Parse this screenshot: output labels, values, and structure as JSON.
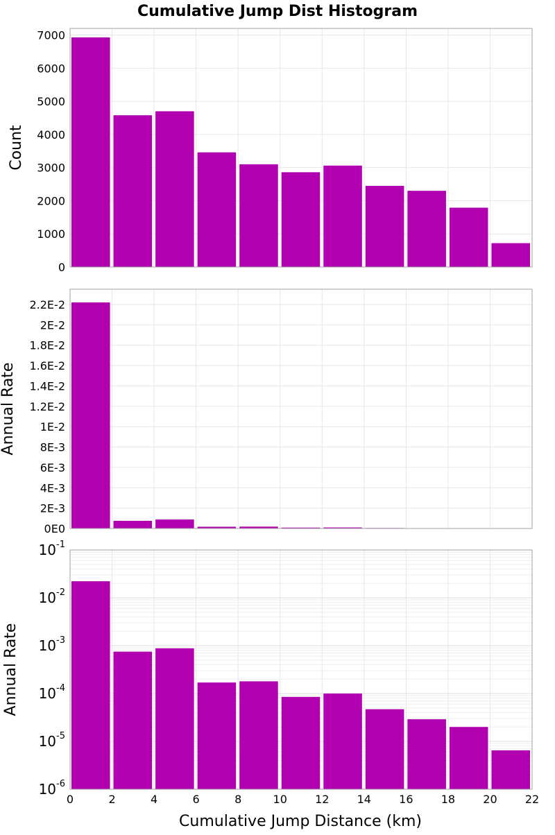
{
  "chart_data": {
    "title": "Cumulative Jump Dist Histogram",
    "xlabel": "Cumulative Jump Distance (km)",
    "bar_color": "#b000b0",
    "grid": true,
    "x_ticks": [
      "0",
      "2",
      "4",
      "6",
      "8",
      "10",
      "12",
      "14",
      "16",
      "18",
      "20",
      "22"
    ],
    "xlim": [
      0,
      22
    ],
    "bins": [
      {
        "start": 0,
        "end": 2
      },
      {
        "start": 2,
        "end": 4
      },
      {
        "start": 4,
        "end": 6
      },
      {
        "start": 6,
        "end": 8
      },
      {
        "start": 8,
        "end": 10
      },
      {
        "start": 10,
        "end": 12
      },
      {
        "start": 12,
        "end": 14
      },
      {
        "start": 14,
        "end": 16
      },
      {
        "start": 16,
        "end": 18
      },
      {
        "start": 18,
        "end": 20
      },
      {
        "start": 20,
        "end": 22
      }
    ],
    "panels": [
      {
        "type": "bar",
        "ylabel": "Count",
        "yscale": "linear",
        "ylim": [
          0,
          7200
        ],
        "y_ticks": [
          {
            "value": 0,
            "label": "0"
          },
          {
            "value": 1000,
            "label": "1000"
          },
          {
            "value": 2000,
            "label": "2000"
          },
          {
            "value": 3000,
            "label": "3000"
          },
          {
            "value": 4000,
            "label": "4000"
          },
          {
            "value": 5000,
            "label": "5000"
          },
          {
            "value": 6000,
            "label": "6000"
          },
          {
            "value": 7000,
            "label": "7000"
          }
        ],
        "values": [
          6930,
          4580,
          4700,
          3460,
          3100,
          2860,
          3060,
          2450,
          2300,
          1790,
          720
        ]
      },
      {
        "type": "bar",
        "ylabel": "Annual Rate",
        "yscale": "linear",
        "ylim": [
          0,
          0.0235
        ],
        "y_ticks": [
          {
            "value": 0,
            "label": "0E0"
          },
          {
            "value": 0.002,
            "label": "2E-3"
          },
          {
            "value": 0.004,
            "label": "4E-3"
          },
          {
            "value": 0.006,
            "label": "6E-3"
          },
          {
            "value": 0.008,
            "label": "8E-3"
          },
          {
            "value": 0.01,
            "label": "1E-2"
          },
          {
            "value": 0.012,
            "label": "1.2E-2"
          },
          {
            "value": 0.014,
            "label": "1.4E-2"
          },
          {
            "value": 0.016,
            "label": "1.6E-2"
          },
          {
            "value": 0.018,
            "label": "1.8E-2"
          },
          {
            "value": 0.02,
            "label": "2E-2"
          },
          {
            "value": 0.022,
            "label": "2.2E-2"
          }
        ],
        "values": [
          0.0222,
          0.00075,
          0.00088,
          0.00017,
          0.00018,
          8.5e-05,
          0.0001,
          4.7e-05,
          2.9e-05,
          2e-05,
          6.5e-06
        ]
      },
      {
        "type": "bar",
        "ylabel": "Annual Rate",
        "yscale": "log",
        "ylim": [
          1e-06,
          0.1
        ],
        "y_ticks": [
          {
            "value": 1e-06,
            "base": "10",
            "exp": "-6"
          },
          {
            "value": 1e-05,
            "base": "10",
            "exp": "-5"
          },
          {
            "value": 0.0001,
            "base": "10",
            "exp": "-4"
          },
          {
            "value": 0.001,
            "base": "10",
            "exp": "-3"
          },
          {
            "value": 0.01,
            "base": "10",
            "exp": "-2"
          },
          {
            "value": 0.1,
            "base": "10",
            "exp": "-1"
          }
        ],
        "values": [
          0.0222,
          0.00075,
          0.00088,
          0.00017,
          0.00018,
          8.5e-05,
          0.0001,
          4.7e-05,
          2.9e-05,
          2e-05,
          6.5e-06
        ]
      }
    ]
  }
}
